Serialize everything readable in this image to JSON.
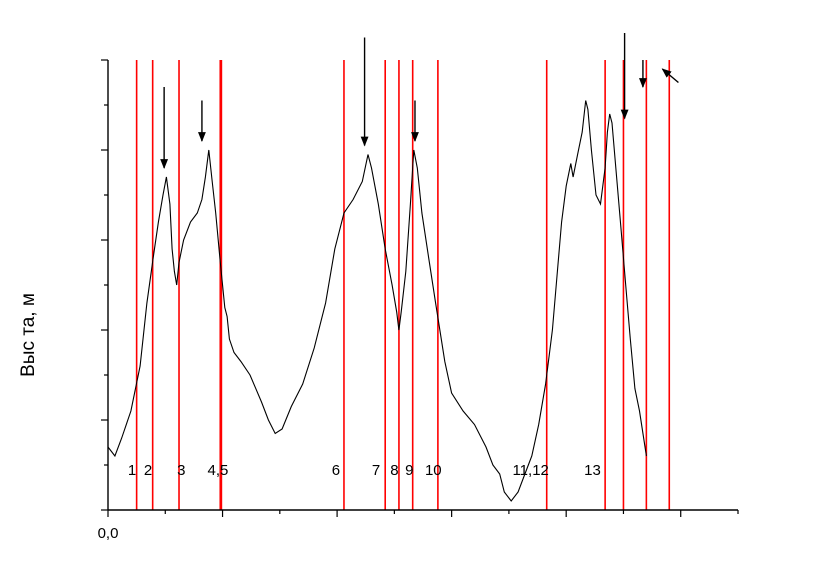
{
  "chart_data": {
    "type": "line",
    "title": "",
    "xlabel": "",
    "ylabel": "Выс  та, м",
    "xlim": [
      0,
      2.75
    ],
    "ylim": [
      0,
      100
    ],
    "x_tick_labels": [
      {
        "x": 0,
        "label": "0,0"
      }
    ],
    "series": [
      {
        "name": "",
        "color": "#000000",
        "points": [
          [
            0.0,
            14
          ],
          [
            0.03,
            12
          ],
          [
            0.06,
            16
          ],
          [
            0.1,
            22
          ],
          [
            0.14,
            32
          ],
          [
            0.17,
            46
          ],
          [
            0.2,
            57
          ],
          [
            0.22,
            64
          ],
          [
            0.24,
            70
          ],
          [
            0.255,
            74
          ],
          [
            0.27,
            68
          ],
          [
            0.28,
            58
          ],
          [
            0.29,
            53
          ],
          [
            0.3,
            50
          ],
          [
            0.31,
            55
          ],
          [
            0.33,
            60
          ],
          [
            0.36,
            64
          ],
          [
            0.39,
            66
          ],
          [
            0.41,
            69
          ],
          [
            0.425,
            74
          ],
          [
            0.44,
            80
          ],
          [
            0.455,
            73
          ],
          [
            0.47,
            66
          ],
          [
            0.49,
            55
          ],
          [
            0.51,
            45
          ],
          [
            0.52,
            43
          ],
          [
            0.53,
            38
          ],
          [
            0.55,
            35
          ],
          [
            0.58,
            33
          ],
          [
            0.62,
            30
          ],
          [
            0.67,
            24
          ],
          [
            0.7,
            20
          ],
          [
            0.73,
            17
          ],
          [
            0.76,
            18
          ],
          [
            0.8,
            23
          ],
          [
            0.85,
            28
          ],
          [
            0.9,
            36
          ],
          [
            0.95,
            46
          ],
          [
            0.99,
            58
          ],
          [
            1.03,
            66
          ],
          [
            1.07,
            69
          ],
          [
            1.11,
            73
          ],
          [
            1.135,
            79
          ],
          [
            1.15,
            76
          ],
          [
            1.18,
            68
          ],
          [
            1.21,
            58
          ],
          [
            1.24,
            50
          ],
          [
            1.26,
            44
          ],
          [
            1.27,
            40
          ],
          [
            1.28,
            44
          ],
          [
            1.3,
            53
          ],
          [
            1.32,
            68
          ],
          [
            1.335,
            80
          ],
          [
            1.35,
            76
          ],
          [
            1.37,
            66
          ],
          [
            1.4,
            56
          ],
          [
            1.43,
            46
          ],
          [
            1.47,
            33
          ],
          [
            1.5,
            26
          ],
          [
            1.55,
            22
          ],
          [
            1.6,
            19
          ],
          [
            1.65,
            14
          ],
          [
            1.68,
            10
          ],
          [
            1.71,
            8
          ],
          [
            1.73,
            4
          ],
          [
            1.76,
            2
          ],
          [
            1.79,
            4
          ],
          [
            1.82,
            8
          ],
          [
            1.85,
            12
          ],
          [
            1.88,
            19
          ],
          [
            1.91,
            28
          ],
          [
            1.94,
            40
          ],
          [
            1.96,
            52
          ],
          [
            1.98,
            64
          ],
          [
            2.0,
            72
          ],
          [
            2.02,
            77
          ],
          [
            2.03,
            74
          ],
          [
            2.05,
            79
          ],
          [
            2.07,
            84
          ],
          [
            2.085,
            91
          ],
          [
            2.095,
            89
          ],
          [
            2.11,
            80
          ],
          [
            2.13,
            70
          ],
          [
            2.15,
            68
          ],
          [
            2.17,
            76
          ],
          [
            2.18,
            84
          ],
          [
            2.19,
            88
          ],
          [
            2.2,
            86
          ],
          [
            2.22,
            74
          ],
          [
            2.24,
            62
          ],
          [
            2.26,
            50
          ],
          [
            2.28,
            38
          ],
          [
            2.3,
            27
          ],
          [
            2.32,
            22
          ],
          [
            2.35,
            12
          ]
        ]
      }
    ],
    "vertical_lines": {
      "color": "#ff0000",
      "x": [
        0.125,
        0.195,
        0.31,
        0.49,
        0.495,
        1.03,
        1.21,
        1.27,
        1.33,
        1.44,
        1.915,
        2.17,
        2.25,
        2.35,
        2.45
      ],
      "labels": [
        {
          "text": "1",
          "x": 0.105
        },
        {
          "text": "2",
          "x": 0.175
        },
        {
          "text": "3",
          "x": 0.32
        },
        {
          "text": "4,5",
          "x": 0.48
        },
        {
          "text": "6",
          "x": 0.995
        },
        {
          "text": "7",
          "x": 1.17
        },
        {
          "text": "8",
          "x": 1.25
        },
        {
          "text": "9",
          "x": 1.315
        },
        {
          "text": "10",
          "x": 1.42
        },
        {
          "text": "11,12",
          "x": 1.845
        },
        {
          "text": "13",
          "x": 2.115
        }
      ]
    },
    "arrows": [
      {
        "from": [
          0.245,
          94
        ],
        "to": [
          0.245,
          76
        ]
      },
      {
        "from": [
          0.41,
          91
        ],
        "to": [
          0.41,
          82
        ]
      },
      {
        "from": [
          1.12,
          105
        ],
        "to": [
          1.12,
          81
        ]
      },
      {
        "from": [
          1.34,
          91
        ],
        "to": [
          1.34,
          82
        ]
      },
      {
        "from": [
          2.255,
          106
        ],
        "to": [
          2.255,
          87
        ]
      },
      {
        "from": [
          2.335,
          100
        ],
        "to": [
          2.335,
          94
        ]
      },
      {
        "from": [
          2.49,
          95
        ],
        "to": [
          2.42,
          98
        ]
      }
    ]
  }
}
